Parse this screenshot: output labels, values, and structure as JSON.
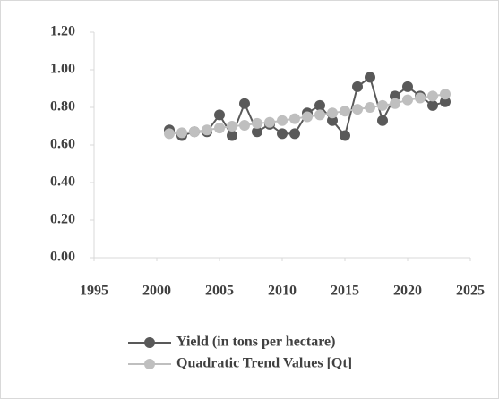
{
  "chart_data": {
    "type": "line",
    "x": [
      2001,
      2002,
      2003,
      2004,
      2005,
      2006,
      2007,
      2008,
      2009,
      2010,
      2011,
      2012,
      2013,
      2014,
      2015,
      2016,
      2017,
      2018,
      2019,
      2020,
      2021,
      2022,
      2023
    ],
    "series": [
      {
        "name": "Yield (in tons per hectare)",
        "color": "#595959",
        "values": [
          0.68,
          0.65,
          0.67,
          0.67,
          0.76,
          0.65,
          0.82,
          0.67,
          0.71,
          0.66,
          0.66,
          0.77,
          0.81,
          0.73,
          0.65,
          0.91,
          0.96,
          0.73,
          0.86,
          0.91,
          0.86,
          0.81,
          0.83
        ]
      },
      {
        "name": "Quadratic Trend Values [Qt]",
        "color": "#bfbfbf",
        "values": [
          0.66,
          0.665,
          0.67,
          0.68,
          0.69,
          0.7,
          0.705,
          0.715,
          0.72,
          0.73,
          0.74,
          0.75,
          0.76,
          0.77,
          0.78,
          0.79,
          0.8,
          0.81,
          0.82,
          0.84,
          0.85,
          0.86,
          0.87
        ]
      }
    ],
    "xlim": [
      1995,
      2025
    ],
    "xticks": [
      1995,
      2000,
      2005,
      2010,
      2015,
      2020,
      2025
    ],
    "ylim": [
      0,
      1.2
    ],
    "yticks": [
      {
        "value": 0,
        "label": "0.00"
      },
      {
        "value": 0.2,
        "label": "0.20"
      },
      {
        "value": 0.4,
        "label": "0.40"
      },
      {
        "value": 0.6,
        "label": "0.60"
      },
      {
        "value": 0.8,
        "label": "0.80"
      },
      {
        "value": 1.0,
        "label": "1.00"
      },
      {
        "value": 1.2,
        "label": "1.20"
      }
    ],
    "grid": false,
    "legend": "bottom"
  }
}
